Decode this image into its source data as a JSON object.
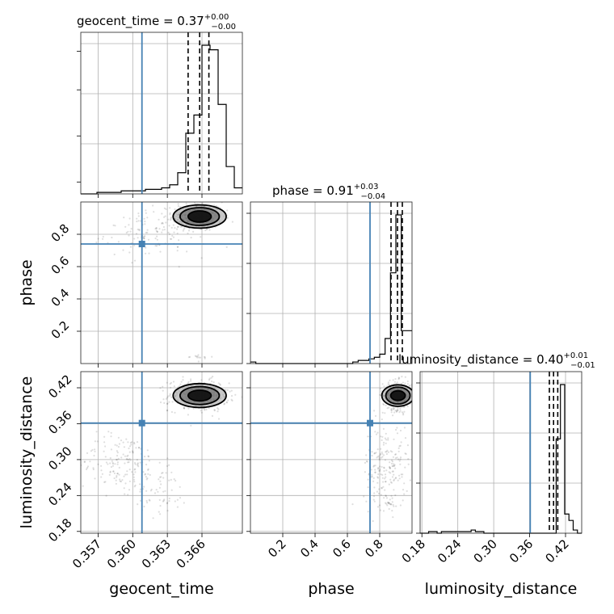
{
  "chart_data": {
    "type": "corner",
    "parameters": [
      "geocent_time",
      "phase",
      "luminosity_distance"
    ],
    "axis_labels": [
      "geocent_time",
      "phase",
      "luminosity_distance"
    ],
    "titles": [
      {
        "name": "geocent_time",
        "median": "0.37",
        "plus": "+0.00",
        "minus": "−0.00"
      },
      {
        "name": "phase",
        "median": "0.91",
        "plus": "+0.03",
        "minus": "−0.04"
      },
      {
        "name": "luminosity_distance",
        "median": "0.40",
        "plus": "+0.01",
        "minus": "−0.01"
      }
    ],
    "ranges": [
      [
        0.3555,
        0.3695
      ],
      [
        0.0,
        1.0
      ],
      [
        0.177,
        0.447
      ]
    ],
    "ticks": {
      "geocent_time": {
        "values": [
          0.357,
          0.36,
          0.363,
          0.366
        ],
        "labels": [
          "0.357",
          "0.360",
          "0.363",
          "0.366"
        ]
      },
      "phase": {
        "values": [
          0.2,
          0.4,
          0.6,
          0.8
        ],
        "labels": [
          "0.2",
          "0.4",
          "0.6",
          "0.8"
        ]
      },
      "luminosity_distance": {
        "values": [
          0.18,
          0.24,
          0.3,
          0.36,
          0.42
        ],
        "labels": [
          "0.18",
          "0.24",
          "0.30",
          "0.36",
          "0.42"
        ]
      }
    },
    "truths": [
      0.3608,
      0.74,
      0.361
    ],
    "quantiles": [
      [
        0.3648,
        0.3658,
        0.3666
      ],
      [
        0.87,
        0.91,
        0.94
      ],
      [
        0.393,
        0.4,
        0.407
      ]
    ],
    "histograms": [
      {
        "edges_range": [
          0.3555,
          0.3695
        ],
        "counts": [
          0,
          0,
          1,
          1,
          1,
          2,
          2,
          2,
          3,
          3,
          4,
          6,
          14,
          40,
          52,
          98,
          95,
          59,
          18,
          4
        ]
      },
      {
        "edges_range": [
          0.0,
          1.0
        ],
        "counts": [
          1,
          0,
          0,
          0,
          0,
          0,
          0,
          0,
          0,
          0,
          0,
          0,
          0,
          0,
          0,
          0,
          0,
          0,
          0,
          1,
          2,
          2,
          3,
          4,
          6,
          16,
          58,
          95,
          21,
          21
        ]
      },
      {
        "edges_range": [
          0.177,
          0.447
        ],
        "counts": [
          0,
          0,
          1,
          1,
          0,
          1,
          1,
          1,
          1,
          1,
          1,
          1,
          2,
          1,
          1,
          0,
          0,
          0,
          0,
          0,
          0,
          0,
          0,
          0,
          0,
          0,
          0,
          0,
          0,
          0,
          0,
          0,
          59,
          93,
          12,
          8,
          2,
          0
        ]
      }
    ],
    "grid": true
  }
}
